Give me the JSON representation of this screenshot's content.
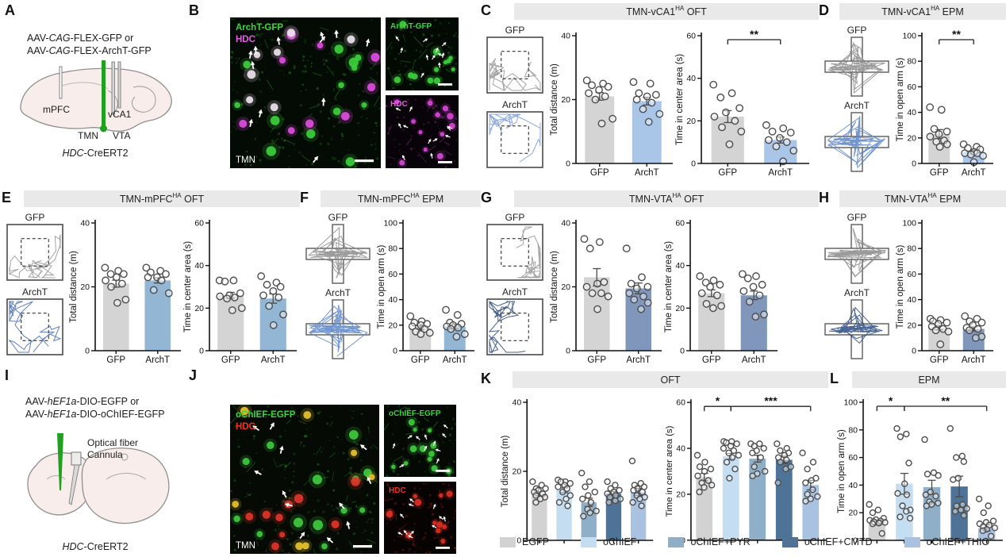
{
  "figure": {
    "panels": {
      "A": {
        "letter": "A",
        "virus_lines": [
          [
            {
              "t": "AAV-"
            },
            {
              "t": "CAG",
              "i": 1
            },
            {
              "t": "-FLEX-GFP or"
            }
          ],
          [
            {
              "t": "AAV-"
            },
            {
              "t": "CAG",
              "i": 1
            },
            {
              "t": "-FLEX-ArchT-GFP"
            }
          ]
        ],
        "brain_labels": {
          "mpfc": "mPFC",
          "vca1": "vCA1",
          "tmn": "TMN",
          "vta": "VTA"
        },
        "mouse_line": [
          {
            "t": "HDC",
            "i": 1
          },
          {
            "t": "-CreERT2"
          }
        ]
      },
      "B": {
        "letter": "B",
        "main": {
          "labels": [
            {
              "text": "ArchT-GFP",
              "color": "#41d341"
            },
            {
              "text": "HDC",
              "color": "#e45ee4"
            }
          ],
          "corner": "TMN",
          "palette": {
            "bg": "#040a04",
            "a": "#3bcf3b",
            "b": "#e14ce1",
            "co": "#efe2ef"
          }
        },
        "insets": [
          {
            "label": {
              "text": "ArchT-GFP",
              "color": "#41d341"
            },
            "palette": {
              "bg": "#030903",
              "a": "#3bcf3b"
            }
          },
          {
            "label": {
              "text": "HDC",
              "color": "#e45ee4"
            },
            "palette": {
              "bg": "#070308",
              "a": "#d944d9"
            }
          }
        ]
      },
      "C": {
        "letter": "C",
        "title": {
          "pre": "TMN-vCA1",
          "sup": "HA",
          "post": " OFT"
        },
        "groups": [
          "GFP",
          "ArchT"
        ],
        "tracks": {
          "gfp": "#9a9a9a",
          "archt": "#7f9fd6"
        }
      },
      "D": {
        "letter": "D",
        "title": {
          "pre": "TMN-vCA1",
          "sup": "HA",
          "post": " EPM"
        },
        "groups": [
          "GFP",
          "ArchT"
        ],
        "tracks": {
          "gfp": "#8a8a8a",
          "archt": "#5b84c6"
        }
      },
      "E": {
        "letter": "E",
        "title": {
          "pre": "TMN-mPFC",
          "sup": "HA",
          "post": " OFT"
        },
        "groups": [
          "GFP",
          "ArchT"
        ],
        "tracks": {
          "gfp": "#9a9a9a",
          "archt": "#4f73b4"
        }
      },
      "F": {
        "letter": "F",
        "title": {
          "pre": "TMN-mPFC",
          "sup": "HA",
          "post": " EPM"
        },
        "groups": [
          "GFP",
          "ArchT"
        ],
        "tracks": {
          "gfp": "#8a8a8a",
          "archt": "#5b84c6"
        }
      },
      "G": {
        "letter": "G",
        "title": {
          "pre": "TMN-VTA",
          "sup": "HA",
          "post": " OFT"
        },
        "groups": [
          "GFP",
          "ArchT"
        ],
        "tracks": {
          "gfp": "#9a9a9a",
          "archt": "#31507f"
        }
      },
      "H": {
        "letter": "H",
        "title": {
          "pre": "TMN-VTA",
          "sup": "HA",
          "post": " EPM"
        },
        "groups": [
          "GFP",
          "ArchT"
        ],
        "tracks": {
          "gfp": "#8a8a8a",
          "archt": "#2c4c82"
        }
      },
      "I": {
        "letter": "I",
        "virus_lines": [
          [
            {
              "t": "AAV-"
            },
            {
              "t": "hEF1a",
              "i": 1
            },
            {
              "t": "-DIO-EGFP or"
            }
          ],
          [
            {
              "t": "AAV-"
            },
            {
              "t": "hEF1a",
              "i": 1
            },
            {
              "t": "-DIO-oChIEF-EGFP"
            }
          ]
        ],
        "fiber_label": "Optical fiber",
        "cannula_label": "Cannula",
        "mouse_line": [
          {
            "t": "HDC",
            "i": 1
          },
          {
            "t": "-CreERT2"
          }
        ]
      },
      "J": {
        "letter": "J",
        "main": {
          "labels": [
            {
              "text": "oChIEF-EGFP",
              "color": "#3fd13f"
            },
            {
              "text": "HDC",
              "color": "#ee3326"
            }
          ],
          "corner": "TMN",
          "palette": {
            "bg": "#050a04",
            "a": "#3ecb3e",
            "b": "#e0352a",
            "co": "#e6c22e"
          }
        },
        "insets": [
          {
            "label": {
              "text": "oChIEF-EGFP",
              "color": "#3fd13f"
            },
            "palette": {
              "bg": "#040904",
              "a": "#3ecb3e"
            }
          },
          {
            "label": {
              "text": "HDC",
              "color": "#ee3326"
            },
            "palette": {
              "bg": "#080303",
              "a": "#dd2f23"
            }
          }
        ]
      },
      "K": {
        "letter": "K",
        "title": {
          "pre": "OFT",
          "sup": "",
          "post": ""
        }
      },
      "L": {
        "letter": "L",
        "title": {
          "pre": "EPM",
          "sup": "",
          "post": ""
        }
      }
    },
    "legend": [
      {
        "label": "EGFP",
        "color": "#d2d2d2"
      },
      {
        "label": "oChIEF",
        "color": "#c5ddf0"
      },
      {
        "label": "oChIEF+PYR",
        "color": "#8fafc8"
      },
      {
        "label": "oChIEF+CMTD",
        "color": "#4e7397"
      },
      {
        "label": "oChIEF+THIO",
        "color": "#a9c2e2"
      }
    ]
  },
  "chart_data": [
    {
      "id": "C1",
      "type": "bar",
      "panel": "C",
      "ylabel": "Total distance (m)",
      "ylim": [
        0,
        40
      ],
      "yticks": [
        0,
        20,
        40
      ],
      "categories": [
        "GFP",
        "ArchT"
      ],
      "values": [
        21,
        19.5
      ],
      "errors": [
        1.2,
        1.2
      ],
      "colors": [
        "#d4d4d4",
        "#a9c6e8"
      ],
      "xlabels": true,
      "sig": [],
      "dots": [
        [
          26,
          25,
          24.5,
          24,
          23,
          22,
          21,
          20,
          14,
          12.5
        ],
        [
          25.5,
          25,
          22,
          21.5,
          21,
          20,
          19,
          17,
          15.5,
          13
        ]
      ]
    },
    {
      "id": "C2",
      "type": "bar",
      "panel": "C",
      "ylabel": "Time in center area (s)",
      "ylim": [
        0,
        60
      ],
      "yticks": [
        0,
        20,
        40,
        60
      ],
      "categories": [
        "GFP",
        "ArchT"
      ],
      "values": [
        22,
        11
      ],
      "errors": [
        2.8,
        1.4
      ],
      "colors": [
        "#d4d4d4",
        "#a9c6e8"
      ],
      "xlabels": true,
      "sig": [
        {
          "from": 0,
          "to": 1,
          "label": "**"
        }
      ],
      "dots": [
        [
          37,
          33,
          31,
          26,
          24,
          22,
          20,
          17,
          15,
          9
        ],
        [
          18,
          16.5,
          15,
          14.5,
          12,
          11,
          10,
          8,
          6,
          1
        ]
      ]
    },
    {
      "id": "D1",
      "type": "bar",
      "panel": "D",
      "ylabel": "Time in open arm (s)",
      "ylim": [
        0,
        100
      ],
      "yticks": [
        0,
        20,
        40,
        60,
        80,
        100
      ],
      "categories": [
        "GFP",
        "ArchT"
      ],
      "values": [
        23,
        9
      ],
      "errors": [
        3.5,
        1.3
      ],
      "colors": [
        "#d4d4d4",
        "#a9c6e8"
      ],
      "xlabels": true,
      "sig": [
        {
          "from": 0,
          "to": 1,
          "label": "**"
        }
      ],
      "dots": [
        [
          44,
          42,
          27,
          25,
          23,
          21,
          18,
          17,
          15,
          13
        ],
        [
          15,
          13,
          12,
          11,
          9,
          8,
          8,
          7,
          6,
          1
        ]
      ]
    },
    {
      "id": "E1",
      "type": "bar",
      "panel": "E",
      "ylabel": "Total distance (m)",
      "ylim": [
        0,
        40
      ],
      "yticks": [
        0,
        20,
        40
      ],
      "categories": [
        "GFP",
        "ArchT"
      ],
      "values": [
        21,
        22
      ],
      "errors": [
        1.1,
        0.8
      ],
      "colors": [
        "#d4d4d4",
        "#93b6d4"
      ],
      "xlabels": true,
      "sig": [],
      "dots": [
        [
          26,
          25,
          24,
          24,
          23,
          22,
          21,
          20,
          16,
          15
        ],
        [
          26,
          25,
          24.5,
          24,
          23,
          23,
          22,
          19,
          18
        ]
      ]
    },
    {
      "id": "E2",
      "type": "bar",
      "panel": "E",
      "ylabel": "Time in center area (s)",
      "ylim": [
        0,
        60
      ],
      "yticks": [
        0,
        20,
        40,
        60
      ],
      "categories": [
        "GFP",
        "ArchT"
      ],
      "values": [
        26,
        24.5
      ],
      "errors": [
        1.4,
        2.2
      ],
      "colors": [
        "#d4d4d4",
        "#93b6d4"
      ],
      "xlabels": true,
      "sig": [],
      "dots": [
        [
          33,
          33,
          32.5,
          27,
          26,
          25.5,
          25,
          24.5,
          20,
          19
        ],
        [
          35,
          32,
          31,
          30,
          28,
          26,
          25,
          21,
          17,
          12
        ]
      ]
    },
    {
      "id": "F1",
      "type": "bar",
      "panel": "F",
      "ylabel": "Time in open arm (s)",
      "ylim": [
        0,
        100
      ],
      "yticks": [
        0,
        20,
        40,
        60,
        80,
        100
      ],
      "categories": [
        "GFP",
        "ArchT"
      ],
      "values": [
        18,
        19
      ],
      "errors": [
        1.5,
        1.9
      ],
      "colors": [
        "#d4d4d4",
        "#93b6d4"
      ],
      "xlabels": true,
      "sig": [],
      "dots": [
        [
          27,
          23,
          22,
          21,
          20,
          19,
          17,
          15,
          14,
          13
        ],
        [
          32,
          28,
          22,
          21,
          20,
          19,
          18,
          17,
          13,
          11
        ]
      ]
    },
    {
      "id": "G1",
      "type": "bar",
      "panel": "G",
      "ylabel": "Total distance (m)",
      "ylim": [
        0,
        40
      ],
      "yticks": [
        0,
        20,
        40
      ],
      "categories": [
        "GFP",
        "ArchT"
      ],
      "values": [
        23,
        19.5
      ],
      "errors": [
        2.7,
        1.7
      ],
      "colors": [
        "#d4d4d4",
        "#8096ba"
      ],
      "xlabels": true,
      "sig": [],
      "dots": [
        [
          35,
          34,
          32,
          21.5,
          21,
          20,
          18,
          18,
          17,
          13
        ],
        [
          32,
          23,
          21,
          20,
          19.5,
          18,
          17,
          16,
          15,
          13
        ]
      ]
    },
    {
      "id": "G2",
      "type": "bar",
      "panel": "G",
      "ylabel": "Time in center area (s)",
      "ylim": [
        0,
        60
      ],
      "yticks": [
        0,
        20,
        40,
        60
      ],
      "categories": [
        "GFP",
        "ArchT"
      ],
      "values": [
        27,
        26
      ],
      "errors": [
        1.6,
        2.0
      ],
      "colors": [
        "#d4d4d4",
        "#8096ba"
      ],
      "xlabels": true,
      "sig": [],
      "dots": [
        [
          35,
          33,
          32,
          31,
          30,
          27,
          26,
          22,
          21,
          20
        ],
        [
          36,
          35,
          34,
          31,
          30,
          28,
          26,
          23,
          17,
          16
        ]
      ]
    },
    {
      "id": "H1",
      "type": "bar",
      "panel": "H",
      "ylabel": "Time in open arm (s)",
      "ylim": [
        0,
        100
      ],
      "yticks": [
        0,
        20,
        40,
        60,
        80,
        100
      ],
      "categories": [
        "GFP",
        "ArchT"
      ],
      "values": [
        18,
        17
      ],
      "errors": [
        1.7,
        1.6
      ],
      "colors": [
        "#d4d4d4",
        "#8096ba"
      ],
      "xlabels": true,
      "sig": [],
      "dots": [
        [
          25,
          24,
          23,
          22,
          21,
          19,
          17,
          16,
          15,
          5
        ],
        [
          27,
          25,
          23,
          22,
          20,
          18,
          17,
          16,
          11,
          10
        ]
      ]
    },
    {
      "id": "K1",
      "type": "bar",
      "panel": "K",
      "ylabel": "Total distance (m)",
      "ylim": [
        0,
        40
      ],
      "yticks": [
        0,
        20,
        40
      ],
      "categories": [
        "EGFP",
        "oChIEF",
        "oChIEF+PYR",
        "oChIEF+CMTD",
        "oChIEF+THIO"
      ],
      "values": [
        13.5,
        14.5,
        11,
        13.5,
        14
      ],
      "errors": [
        0.6,
        0.7,
        1.2,
        0.6,
        1.0
      ],
      "colors": [
        "#d2d2d2",
        "#c5ddf0",
        "#8fafc8",
        "#4e7397",
        "#a9c2e2"
      ],
      "xlabels": false,
      "sig": [],
      "dots": [
        [
          17,
          16,
          15,
          15,
          14.5,
          14,
          13.5,
          13,
          12.5,
          12,
          11
        ],
        [
          17.5,
          17,
          17,
          16.5,
          16,
          15.5,
          15,
          14,
          13,
          12,
          11,
          10
        ],
        [
          19.5,
          17,
          15.5,
          14,
          13,
          12,
          11,
          9,
          8.5,
          8,
          7
        ],
        [
          17,
          16,
          15,
          14.5,
          14,
          13.5,
          13,
          12.5,
          12,
          11.5,
          11
        ],
        [
          23,
          16.5,
          16,
          15.5,
          15,
          14.5,
          14,
          13,
          12.5,
          12,
          11,
          10
        ]
      ]
    },
    {
      "id": "K2",
      "type": "bar",
      "panel": "K",
      "ylabel": "Time in center area (s)",
      "ylim": [
        0,
        60
      ],
      "yticks": [
        0,
        20,
        40,
        60
      ],
      "categories": [
        "EGFP",
        "oChIEF",
        "oChIEF+PYR",
        "oChIEF+CMTD",
        "oChIEF+THIO"
      ],
      "values": [
        27.5,
        36.5,
        35.5,
        35,
        24
      ],
      "errors": [
        1.6,
        1.3,
        1.5,
        1.6,
        2.1
      ],
      "colors": [
        "#d2d2d2",
        "#c5ddf0",
        "#8fafc8",
        "#4e7397",
        "#a9c2e2"
      ],
      "xlabels": false,
      "sig": [
        {
          "from": 0,
          "to": 1,
          "label": "*"
        },
        {
          "from": 1,
          "to": 4,
          "label": "***"
        }
      ],
      "dots": [
        [
          37,
          34,
          32,
          31,
          30,
          28,
          26,
          25,
          24,
          23,
          21
        ],
        [
          43,
          43,
          42.5,
          42,
          41,
          40,
          39,
          38,
          37,
          36,
          34,
          31,
          27
        ],
        [
          42,
          42,
          41,
          40,
          39,
          38,
          36,
          32,
          30,
          29,
          28
        ],
        [
          42,
          40,
          39,
          38,
          37,
          36,
          35,
          34,
          32,
          31,
          25
        ],
        [
          38,
          34,
          31,
          27,
          26,
          25,
          22,
          20,
          19,
          18,
          17
        ]
      ]
    },
    {
      "id": "L1",
      "type": "bar",
      "panel": "L",
      "ylabel": "Time in open arm (s)",
      "ylim": [
        0,
        100
      ],
      "yticks": [
        0,
        20,
        40,
        60,
        80,
        100
      ],
      "categories": [
        "EGFP",
        "oChIEF",
        "oChIEF+PYR",
        "oChIEF+CMTD",
        "oChIEF+THIO"
      ],
      "values": [
        13,
        41,
        38.5,
        39,
        9
      ],
      "errors": [
        1.8,
        7.5,
        5.0,
        7.5,
        2.2
      ],
      "colors": [
        "#d2d2d2",
        "#c5ddf0",
        "#8fafc8",
        "#4e7397",
        "#a9c2e2"
      ],
      "xlabels": false,
      "sig": [
        {
          "from": 0,
          "to": 1,
          "label": "*"
        },
        {
          "from": 1,
          "to": 4,
          "label": "**"
        }
      ],
      "dots": [
        [
          26,
          22,
          20,
          16,
          15,
          14.5,
          14,
          13.5,
          13,
          12.5,
          12,
          5
        ],
        [
          81,
          77,
          75,
          56,
          41,
          34,
          33,
          25,
          22,
          21,
          17,
          16
        ],
        [
          73,
          49,
          48,
          47,
          35,
          33,
          32,
          28,
          27,
          26,
          25
        ],
        [
          81,
          61,
          60,
          57,
          45,
          44,
          26,
          25,
          23,
          22,
          21,
          18
        ],
        [
          30,
          25,
          20,
          14,
          13,
          12,
          11,
          10,
          9,
          8,
          7,
          3
        ]
      ]
    }
  ]
}
